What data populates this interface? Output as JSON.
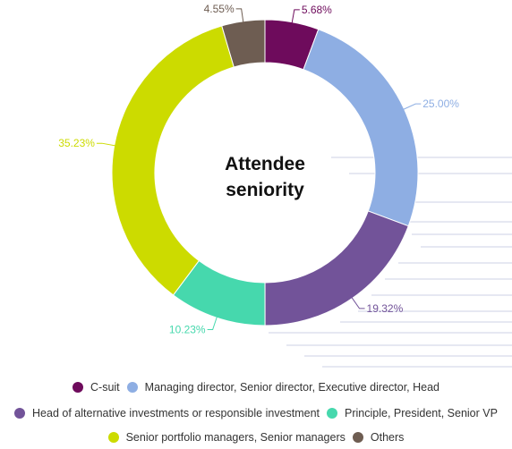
{
  "chart_data": {
    "type": "pie",
    "title": "Attendee seniority",
    "title_lines": [
      "Attendee",
      "seniority"
    ],
    "donut": true,
    "slices": [
      {
        "name": "C-suit",
        "value": 5.68,
        "label": "5.68%",
        "color": "#6e0b5c"
      },
      {
        "name": "Managing director, Senior director, Executive director, Head",
        "value": 25.0,
        "label": "25.00%",
        "color": "#8eaee3"
      },
      {
        "name": "Head of alternative investments or responsible investment",
        "value": 19.32,
        "label": "19.32%",
        "color": "#725399"
      },
      {
        "name": "Principle, President, Senior VP",
        "value": 10.23,
        "label": "10.23%",
        "color": "#46d8ad"
      },
      {
        "name": "Senior portfolio managers, Senior managers",
        "value": 35.23,
        "label": "35.23%",
        "color": "#ccdb00"
      },
      {
        "name": "Others",
        "value": 4.55,
        "label": "4.55%",
        "color": "#6e5d52"
      }
    ],
    "legend_position": "bottom"
  }
}
